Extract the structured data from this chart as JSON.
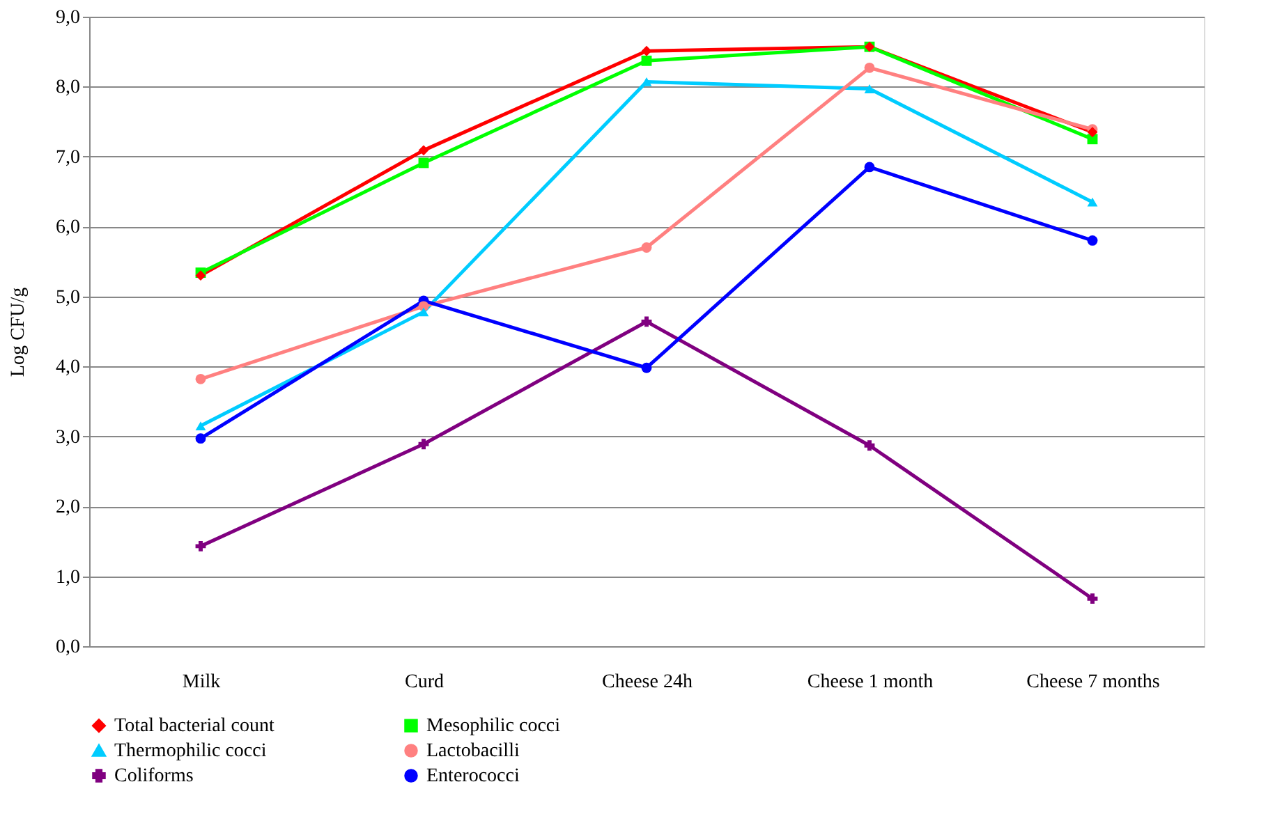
{
  "chart_data": {
    "type": "line",
    "ylabel": "Log CFU/g",
    "categories": [
      "Milk",
      "Curd",
      "Cheese 24h",
      "Cheese 1 month",
      "Cheese 7 months"
    ],
    "series": [
      {
        "name": "Total bacterial count",
        "color": "#ff0000",
        "marker": "diamond",
        "values": [
          5.3,
          7.09,
          8.51,
          8.57,
          7.35
        ]
      },
      {
        "name": "Mesophilic cocci",
        "color": "#00ff00",
        "marker": "square",
        "values": [
          5.34,
          6.91,
          8.37,
          8.57,
          7.25
        ]
      },
      {
        "name": "Thermophilic cocci",
        "color": "#00ccff",
        "marker": "triangle",
        "values": [
          3.15,
          4.78,
          8.07,
          7.97,
          6.35
        ]
      },
      {
        "name": "Lactobacilli",
        "color": "#ff8080",
        "marker": "circle",
        "values": [
          3.82,
          4.86,
          5.7,
          8.27,
          7.39
        ]
      },
      {
        "name": "Coliforms",
        "color": "#800080",
        "marker": "cross",
        "values": [
          1.43,
          2.89,
          4.64,
          2.87,
          0.68
        ]
      },
      {
        "name": "Enterococci",
        "color": "#0000ff",
        "marker": "circle",
        "values": [
          2.97,
          4.94,
          3.98,
          6.85,
          5.8
        ]
      }
    ],
    "ylim": [
      0,
      9
    ],
    "yticks": [
      {
        "value": 0,
        "label": "0,0"
      },
      {
        "value": 1,
        "label": "1,0"
      },
      {
        "value": 2,
        "label": "2,0"
      },
      {
        "value": 3,
        "label": "3,0"
      },
      {
        "value": 4,
        "label": "4,0"
      },
      {
        "value": 5,
        "label": "5,0"
      },
      {
        "value": 6,
        "label": "6,0"
      },
      {
        "value": 7,
        "label": "7,0"
      },
      {
        "value": 8,
        "label": "8,0"
      },
      {
        "value": 9,
        "label": "9,0"
      }
    ],
    "grid": "y",
    "legend": "bottom",
    "line_style": "solid"
  }
}
